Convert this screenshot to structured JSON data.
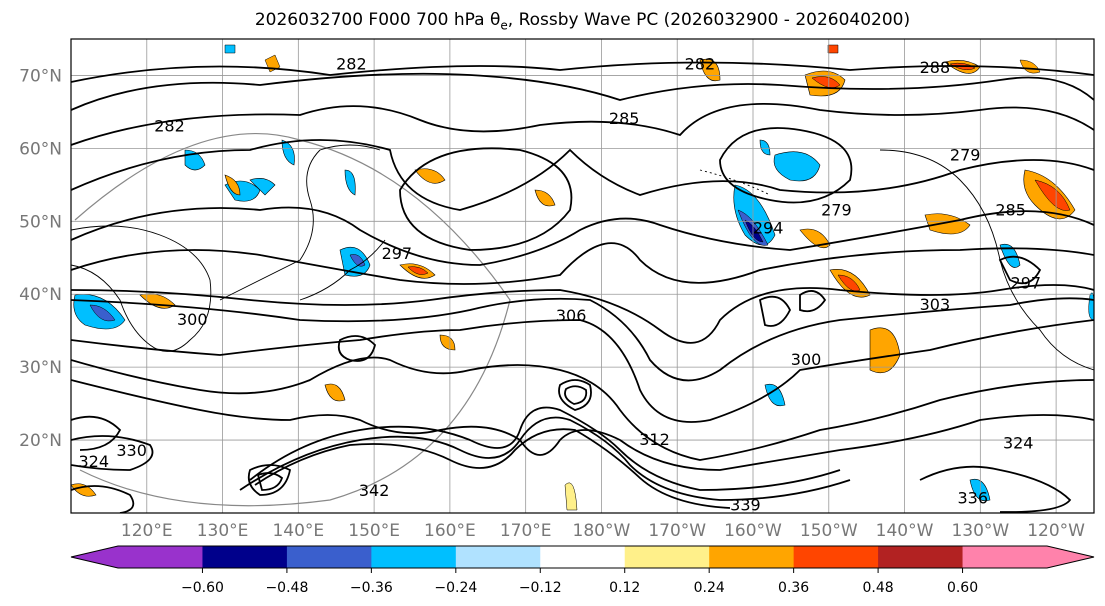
{
  "title": {
    "prefix": "2026032700 F000 700 hPa θ",
    "sub": "e",
    "suffix": ", Rossby Wave PC (2026032900 - 2026040200)"
  },
  "map": {
    "lat_labels": [
      "70°N",
      "60°N",
      "50°N",
      "40°N",
      "30°N",
      "20°N"
    ],
    "lat_values": [
      70,
      60,
      50,
      40,
      30,
      20
    ],
    "lon_labels": [
      "120°E",
      "130°E",
      "140°E",
      "150°E",
      "160°E",
      "170°E",
      "180°W",
      "170°W",
      "160°W",
      "150°W",
      "140°W",
      "130°W",
      "120°W"
    ],
    "contour_labels": [
      {
        "text": "282",
        "lat": 63,
        "lon": 123
      },
      {
        "text": "282",
        "lat": 71.5,
        "lon": 147
      },
      {
        "text": "282",
        "lat": 71.5,
        "lon": 193
      },
      {
        "text": "285",
        "lat": 64,
        "lon": 183
      },
      {
        "text": "288",
        "lat": 71,
        "lon": 224
      },
      {
        "text": "279",
        "lat": 51.5,
        "lon": 211
      },
      {
        "text": "279",
        "lat": 59,
        "lon": 228
      },
      {
        "text": "285",
        "lat": 51.5,
        "lon": 234
      },
      {
        "text": "294",
        "lat": 49,
        "lon": 202
      },
      {
        "text": "297",
        "lat": 45.5,
        "lon": 153
      },
      {
        "text": "297",
        "lat": 41.5,
        "lon": 236
      },
      {
        "text": "303",
        "lat": 38.5,
        "lon": 224
      },
      {
        "text": "306",
        "lat": 37,
        "lon": 176
      },
      {
        "text": "300",
        "lat": 31,
        "lon": 207
      },
      {
        "text": "300",
        "lat": 36.5,
        "lon": 126
      },
      {
        "text": "330",
        "lat": 18.5,
        "lon": 118
      },
      {
        "text": "324",
        "lat": 17,
        "lon": 113
      },
      {
        "text": "342",
        "lat": 13,
        "lon": 150
      },
      {
        "text": "339",
        "lat": 11,
        "lon": 199
      },
      {
        "text": "336",
        "lat": 12,
        "lon": 229
      },
      {
        "text": "312",
        "lat": 20,
        "lon": 187
      },
      {
        "text": "324",
        "lat": 19.5,
        "lon": 235
      }
    ]
  },
  "colorbar": {
    "ticks": [
      "−0.60",
      "−0.48",
      "−0.36",
      "−0.24",
      "−0.12",
      "0.12",
      "0.24",
      "0.36",
      "0.48",
      "0.60"
    ],
    "colors": [
      "#9932cc",
      "#00008b",
      "#3a5fcd",
      "#00bfff",
      "#b0e2ff",
      "#ffffff",
      "#fff08a",
      "#ffa500",
      "#ff4500",
      "#b22222",
      "#ff82ab"
    ],
    "min_color": "#9932cc",
    "max_color": "#ff82ab"
  }
}
